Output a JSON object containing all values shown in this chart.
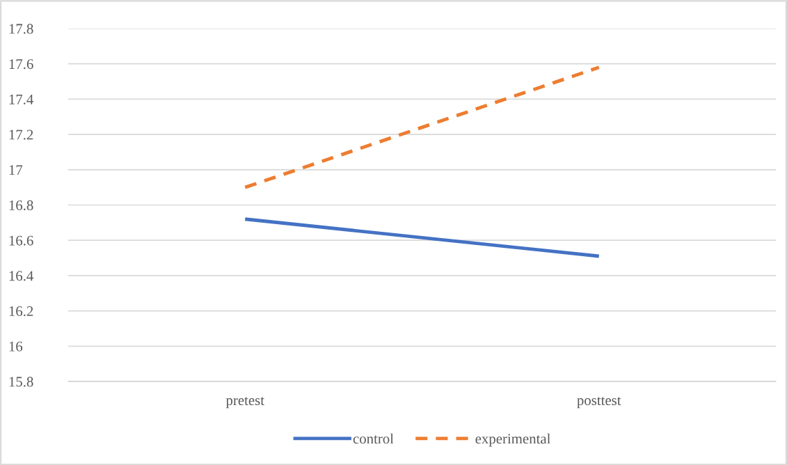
{
  "chart_data": {
    "type": "line",
    "categories": [
      "pretest",
      "posttest"
    ],
    "series": [
      {
        "name": "control",
        "color": "#4472c4",
        "values": [
          16.72,
          16.51
        ],
        "line_style": "solid"
      },
      {
        "name": "experimental",
        "color": "#ed7d31",
        "values": [
          16.9,
          17.58
        ],
        "line_style": "dashed"
      }
    ],
    "ylim": [
      15.8,
      17.8
    ],
    "yticks": [
      {
        "value": 15.8,
        "label": "15.8"
      },
      {
        "value": 16,
        "label": "16"
      },
      {
        "value": 16.2,
        "label": "16.2"
      },
      {
        "value": 16.4,
        "label": "16.4"
      },
      {
        "value": 16.6,
        "label": "16.6"
      },
      {
        "value": 16.8,
        "label": "16.8"
      },
      {
        "value": 17,
        "label": "17"
      },
      {
        "value": 17.2,
        "label": "17.2"
      },
      {
        "value": 17.4,
        "label": "17.4"
      },
      {
        "value": 17.6,
        "label": "17.6"
      },
      {
        "value": 17.8,
        "label": "17.8"
      }
    ],
    "grid": "y",
    "legend": "bottom",
    "marker": "none"
  }
}
